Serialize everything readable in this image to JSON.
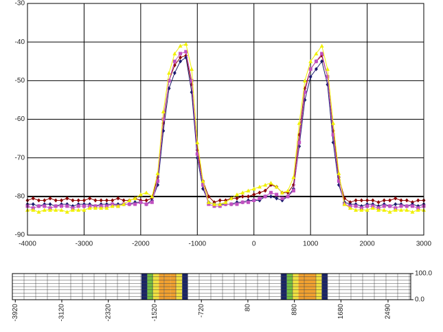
{
  "chart_data": [
    {
      "type": "line",
      "x": [
        -4000,
        -3900,
        -3800,
        -3700,
        -3600,
        -3500,
        -3400,
        -3300,
        -3200,
        -3100,
        -3000,
        -2900,
        -2800,
        -2700,
        -2600,
        -2500,
        -2400,
        -2300,
        -2200,
        -2100,
        -2000,
        -1900,
        -1800,
        -1700,
        -1600,
        -1500,
        -1400,
        -1300,
        -1200,
        -1100,
        -1000,
        -900,
        -800,
        -700,
        -600,
        -500,
        -400,
        -300,
        -200,
        -100,
        0,
        100,
        200,
        300,
        400,
        500,
        600,
        700,
        800,
        900,
        1000,
        1100,
        1200,
        1300,
        1400,
        1500,
        1600,
        1700,
        1800,
        1900,
        2000,
        2100,
        2200,
        2300,
        2400,
        2500,
        2600,
        2700,
        2800,
        2900,
        3000
      ],
      "xlim": [
        -4000,
        3000
      ],
      "xticks": [
        -4000,
        -3000,
        -2000,
        -1000,
        0,
        1000,
        2000,
        3000
      ],
      "ylim": [
        -90,
        -30
      ],
      "yticks": [
        -90,
        -80,
        -70,
        -60,
        -50,
        -40,
        -30
      ],
      "grid": true,
      "reference_line": -80,
      "series": [
        {
          "color": "#8b0000",
          "marker": "diamond",
          "values": [
            -81,
            -80.5,
            -81,
            -81,
            -80.5,
            -81,
            -81,
            -80.5,
            -81,
            -81,
            -81,
            -80.5,
            -81,
            -81,
            -81,
            -81,
            -80.5,
            -81,
            -81,
            -80.5,
            -81,
            -81,
            -80.5,
            -75,
            -61,
            -50,
            -46,
            -44,
            -43.5,
            -51,
            -68,
            -76,
            -80,
            -81.5,
            -81,
            -81,
            -80.5,
            -80.5,
            -80,
            -80,
            -79.5,
            -79,
            -78.5,
            -77,
            -77.5,
            -79,
            -79,
            -77,
            -64,
            -52,
            -47,
            -45,
            -43.5,
            -49,
            -63,
            -75,
            -80.5,
            -81.5,
            -81,
            -81,
            -81,
            -81,
            -81.5,
            -81,
            -81,
            -80.5,
            -81,
            -81,
            -81.5,
            -81,
            -81
          ]
        },
        {
          "color": "#1a1a6e",
          "marker": "diamond",
          "values": [
            -82,
            -82,
            -82.5,
            -82,
            -82,
            -82.5,
            -82,
            -82,
            -82.5,
            -82,
            -82,
            -82,
            -82.5,
            -82,
            -82,
            -82,
            -82,
            -82,
            -82,
            -81.5,
            -81.5,
            -82,
            -81,
            -77,
            -63,
            -52,
            -48,
            -45,
            -44,
            -53,
            -70,
            -78,
            -81.5,
            -82,
            -82,
            -82,
            -82,
            -81.5,
            -81.5,
            -81,
            -81,
            -81,
            -80,
            -80,
            -80.5,
            -81,
            -80,
            -78,
            -67,
            -55,
            -49,
            -47,
            -45,
            -51,
            -66,
            -77,
            -81.5,
            -82,
            -82,
            -82.5,
            -82,
            -82,
            -82.5,
            -82,
            -82.5,
            -82,
            -82,
            -82.5,
            -82,
            -82.5,
            -82
          ]
        },
        {
          "color": "#c050c0",
          "marker": "square",
          "values": [
            -82.5,
            -83,
            -82.5,
            -82.5,
            -83,
            -82.5,
            -82.5,
            -82.5,
            -83,
            -82.5,
            -82.5,
            -82.5,
            -82.5,
            -82.5,
            -82.5,
            -82,
            -82.5,
            -82,
            -82,
            -82,
            -81.5,
            -82,
            -81.5,
            -76,
            -60,
            -50,
            -45,
            -43,
            -42.5,
            -50,
            -69,
            -77,
            -82,
            -82.5,
            -82.5,
            -82,
            -82,
            -82,
            -81.5,
            -81.5,
            -81,
            -80.5,
            -80,
            -79,
            -79.5,
            -80.5,
            -80,
            -78.5,
            -66,
            -53,
            -47,
            -45,
            -43,
            -49,
            -64,
            -76,
            -82,
            -82.5,
            -82.5,
            -83,
            -82.5,
            -82.5,
            -83,
            -82.5,
            -82.5,
            -83,
            -82.5,
            -82.5,
            -82.5,
            -83,
            -82.5
          ]
        },
        {
          "color": "#f0f000",
          "marker": "triangle",
          "values": [
            -83.5,
            -83.5,
            -84,
            -83.5,
            -83.5,
            -83.5,
            -83.5,
            -84,
            -83.5,
            -83.5,
            -83.5,
            -83,
            -83,
            -83,
            -83,
            -82.5,
            -82.5,
            -82,
            -81,
            -80.5,
            -79.5,
            -79,
            -80,
            -74,
            -58,
            -48,
            -43,
            -41,
            -40.5,
            -47,
            -66,
            -76,
            -81.5,
            -82,
            -82,
            -81.5,
            -80.5,
            -79.5,
            -79,
            -78.5,
            -78,
            -77.5,
            -77,
            -76.5,
            -77.5,
            -79,
            -78.5,
            -75,
            -61,
            -50,
            -45,
            -43,
            -41,
            -47,
            -61,
            -74,
            -82,
            -83,
            -83.5,
            -83.5,
            -83.5,
            -83,
            -83.5,
            -83.5,
            -84,
            -83.5,
            -83.5,
            -83.5,
            -84,
            -83.5,
            -83.5
          ]
        }
      ]
    },
    {
      "type": "heatmap",
      "x": [
        -3900,
        -3800,
        -3700,
        -3600,
        -3500,
        -3400,
        -3300,
        -3200,
        -3100,
        -3000,
        -2900,
        -2800,
        -2700,
        -2600,
        -2500,
        -2400,
        -2300,
        -2200,
        -2100,
        -2000,
        -1900,
        -1800,
        -1700,
        -1600,
        -1500,
        -1400,
        -1300,
        -1200,
        -1100,
        -1000,
        -900,
        -800,
        -700,
        -600,
        -500,
        -400,
        -300,
        -200,
        -100,
        0,
        100,
        200,
        300,
        400,
        500,
        600,
        700,
        800,
        900,
        1000,
        1100,
        1200,
        1300,
        1400,
        1500,
        1600,
        1700,
        1800,
        1900,
        2000,
        2100,
        2200,
        2300,
        2400,
        2500,
        2600,
        2700,
        2800
      ],
      "values": [
        0,
        0,
        0,
        0,
        0,
        0,
        0,
        0,
        0,
        0,
        0,
        0,
        0,
        0,
        0,
        0,
        0,
        0,
        0,
        0,
        0,
        0,
        25,
        50,
        70,
        85,
        90,
        85,
        60,
        25,
        0,
        0,
        0,
        0,
        0,
        0,
        0,
        0,
        0,
        0,
        0,
        0,
        0,
        0,
        0,
        0,
        25,
        50,
        70,
        85,
        90,
        85,
        60,
        25,
        0,
        0,
        0,
        0,
        0,
        0,
        0,
        0,
        0,
        0,
        0,
        0,
        0,
        0
      ],
      "xlim": [
        -3970,
        2880
      ],
      "xticks": [
        -3920,
        -3120,
        -2320,
        -1520,
        -720,
        80,
        880,
        1680,
        2490
      ],
      "ylim": [
        0,
        100
      ],
      "yticks": [
        {
          "value": 100,
          "label": "100.0"
        },
        {
          "value": 0,
          "label": "0.0"
        }
      ]
    }
  ]
}
